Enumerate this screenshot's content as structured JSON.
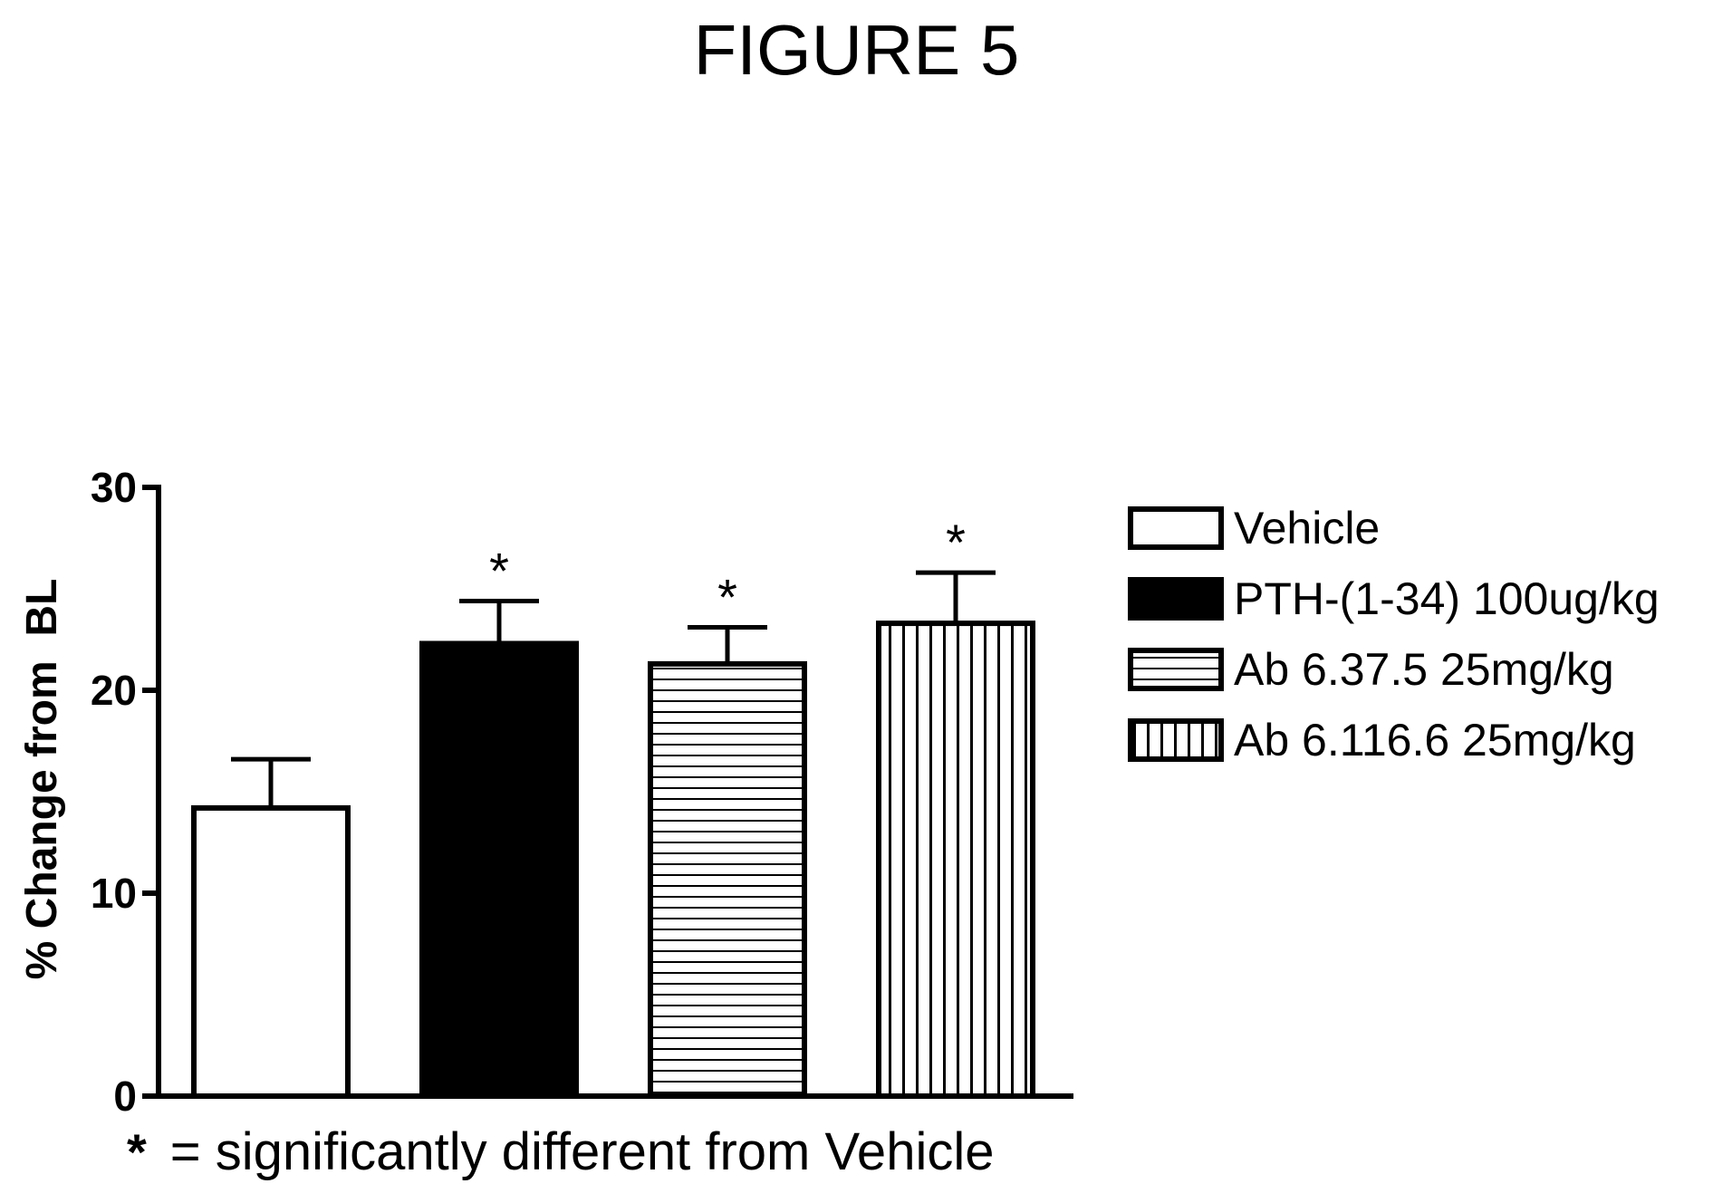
{
  "chart_data": {
    "type": "bar",
    "title": "FIGURE 5",
    "ylabel": "% Change from  BL",
    "xlabel": "",
    "ylim": [
      0,
      30
    ],
    "yticks": [
      0,
      10,
      20,
      30
    ],
    "grid": false,
    "legend_placement": "right",
    "categories": [
      "Vehicle",
      "PTH-(1-34) 100ug/kg",
      "Ab 6.37.5 25mg/kg",
      "Ab 6.116.6 25mg/kg"
    ],
    "values": [
      14.2,
      22.3,
      21.3,
      23.3
    ],
    "error_bars": [
      2.4,
      2.1,
      1.8,
      2.5
    ],
    "significance_marks": [
      "",
      "*",
      "*",
      "*"
    ],
    "patterns": [
      "white",
      "black",
      "horizontal-lines",
      "vertical-lines"
    ],
    "footnote": {
      "symbol": "*",
      "text": "= significantly different from Vehicle"
    }
  }
}
